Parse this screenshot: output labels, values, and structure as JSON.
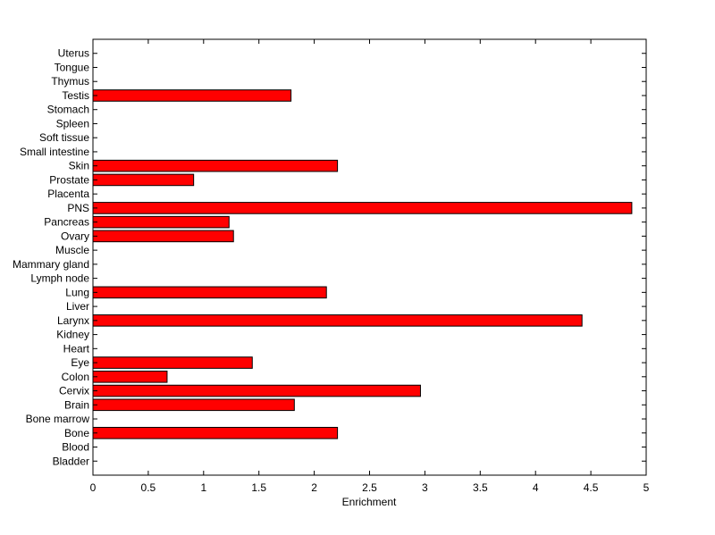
{
  "chart_data": {
    "type": "barh",
    "xlabel": "Enrichment",
    "categories": [
      "Bladder",
      "Blood",
      "Bone",
      "Bone marrow",
      "Brain",
      "Cervix",
      "Colon",
      "Eye",
      "Heart",
      "Kidney",
      "Larynx",
      "Liver",
      "Lung",
      "Lymph node",
      "Mammary gland",
      "Muscle",
      "Ovary",
      "Pancreas",
      "PNS",
      "Placenta",
      "Prostate",
      "Skin",
      "Small intestine",
      "Soft tissue",
      "Spleen",
      "Stomach",
      "Testis",
      "Thymus",
      "Tongue",
      "Uterus"
    ],
    "values": [
      0,
      0,
      2.21,
      0,
      1.82,
      2.96,
      0.67,
      1.44,
      0,
      0,
      4.42,
      0,
      2.11,
      0,
      0,
      0,
      1.27,
      1.23,
      4.87,
      0,
      0.91,
      2.21,
      0,
      0,
      0,
      0,
      1.79,
      0,
      0,
      0
    ],
    "color": "#ff0000",
    "xlim": [
      0,
      5
    ],
    "xticks": [
      0,
      0.5,
      1,
      1.5,
      2,
      2.5,
      3,
      3.5,
      4,
      4.5,
      5
    ]
  }
}
